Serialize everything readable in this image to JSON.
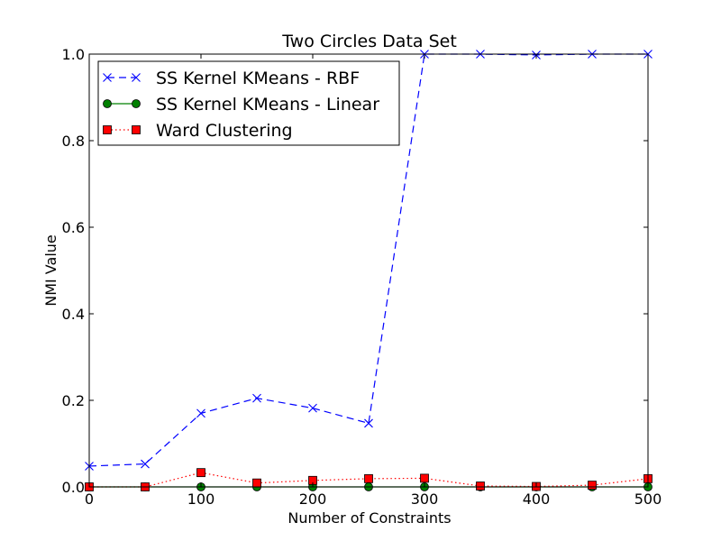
{
  "chart_data": {
    "type": "line",
    "title": "Two Circles Data Set",
    "xlabel": "Number of Constraints",
    "ylabel": "NMI Value",
    "xlim": [
      0,
      500
    ],
    "ylim": [
      0,
      1.0
    ],
    "xticks": [
      0,
      100,
      200,
      300,
      400,
      500
    ],
    "yticks": [
      0.0,
      0.2,
      0.4,
      0.6,
      0.8,
      1.0
    ],
    "ytick_labels": [
      "0.0",
      "0.2",
      "0.4",
      "0.6",
      "0.8",
      "1.0"
    ],
    "grid": false,
    "legend": "top-left",
    "x": [
      0,
      50,
      100,
      150,
      200,
      250,
      300,
      350,
      400,
      450,
      500
    ],
    "series": [
      {
        "name": "SS Kernel KMeans - RBF",
        "color": "#0000ff",
        "line_style": "dashed",
        "marker": "x",
        "values": [
          0.048,
          0.053,
          0.17,
          0.205,
          0.182,
          0.147,
          1.0,
          1.0,
          0.998,
          1.0,
          1.0
        ]
      },
      {
        "name": "SS Kernel KMeans - Linear",
        "color": "#008000",
        "line_style": "solid",
        "marker": "circle",
        "values": [
          0.0,
          0.0,
          0.0,
          0.0,
          0.0,
          0.0,
          0.0,
          0.0,
          0.0,
          0.0,
          0.0
        ]
      },
      {
        "name": "Ward Clustering",
        "color": "#ff0000",
        "line_style": "dotted",
        "marker": "square",
        "values": [
          0.0,
          0.0,
          0.033,
          0.009,
          0.015,
          0.019,
          0.02,
          0.002,
          0.001,
          0.004,
          0.019
        ]
      }
    ]
  }
}
